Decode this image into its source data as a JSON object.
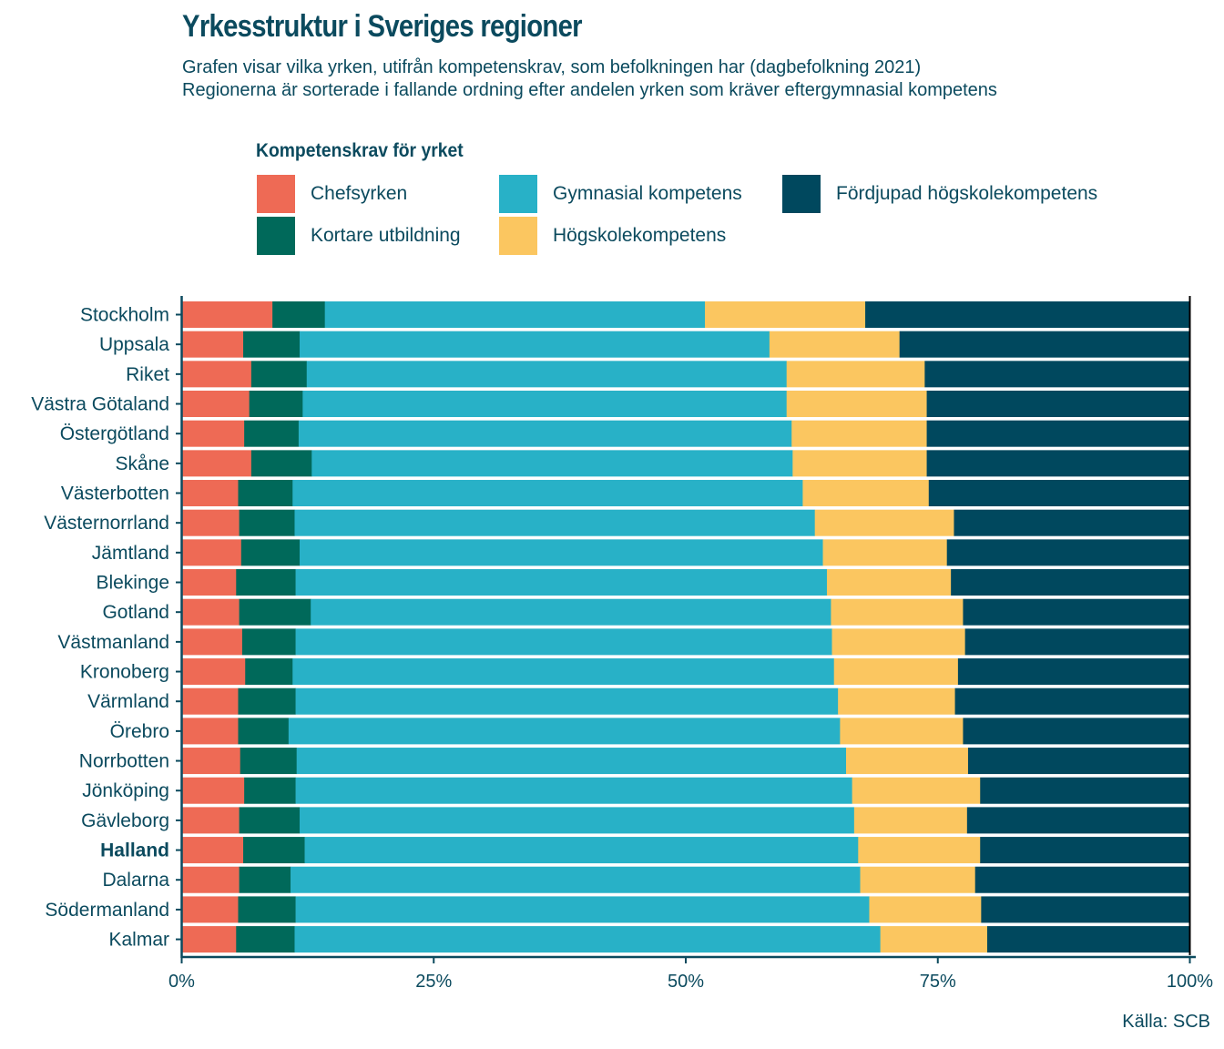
{
  "title": "Yrkesstruktur i Sveriges regioner",
  "subtitle_lines": [
    "Grafen visar vilka yrken, utifrån kompetenskrav, som befolkningen har (dagbefolkning 2021)",
    "Regionerna är sorterade i fallande ordning efter andelen yrken som kräver eftergymnasial kompetens"
  ],
  "legend": {
    "title": "Kompetenskrav för yrket",
    "items": [
      {
        "label": "Chefsyrken",
        "color": "#EE6A55"
      },
      {
        "label": "Kortare utbildning",
        "color": "#00695A"
      },
      {
        "label": "Gymnasial kompetens",
        "color": "#28B1C7"
      },
      {
        "label": "Högskolekompetens",
        "color": "#FBC660"
      },
      {
        "label": "Fördjupad högskolekompetens",
        "color": "#00485E"
      }
    ]
  },
  "source": "Källa: SCB",
  "chart_data": {
    "type": "bar",
    "orientation": "horizontal",
    "stacked": true,
    "normalized": true,
    "title": "Yrkesstruktur i Sveriges regioner",
    "xlabel": "",
    "ylabel": "",
    "xlim": [
      0,
      100
    ],
    "x_ticks": [
      "0%",
      "25%",
      "50%",
      "75%",
      "100%"
    ],
    "x_tick_values": [
      0,
      25,
      50,
      75,
      100
    ],
    "legend_position": "top",
    "highlighted_category": "Halland",
    "categories": [
      "Stockholm",
      "Uppsala",
      "Riket",
      "Västra Götaland",
      "Östergötland",
      "Skåne",
      "Västerbotten",
      "Västernorrland",
      "Jämtland",
      "Blekinge",
      "Gotland",
      "Västmanland",
      "Kronoberg",
      "Värmland",
      "Örebro",
      "Norrbotten",
      "Jönköping",
      "Gävleborg",
      "Halland",
      "Dalarna",
      "Södermanland",
      "Kalmar"
    ],
    "series": [
      {
        "name": "Chefsyrken",
        "color": "#EE6A55",
        "values": [
          9.0,
          6.1,
          6.9,
          6.7,
          6.2,
          6.9,
          5.6,
          5.7,
          5.9,
          5.4,
          5.7,
          6.0,
          6.3,
          5.6,
          5.6,
          5.8,
          6.2,
          5.7,
          6.1,
          5.7,
          5.6,
          5.4
        ]
      },
      {
        "name": "Kortare utbildning",
        "color": "#00695A",
        "values": [
          5.2,
          5.6,
          5.5,
          5.3,
          5.4,
          6.0,
          5.4,
          5.5,
          5.8,
          5.9,
          7.1,
          5.3,
          4.7,
          5.7,
          5.0,
          5.6,
          5.1,
          6.0,
          6.1,
          5.1,
          5.7,
          5.8
        ]
      },
      {
        "name": "Gymnasial kompetens",
        "color": "#28B1C7",
        "values": [
          37.7,
          46.6,
          47.6,
          48.0,
          48.9,
          47.7,
          50.6,
          51.6,
          51.9,
          52.7,
          51.6,
          53.2,
          53.7,
          53.8,
          54.7,
          54.5,
          55.2,
          55.0,
          54.9,
          56.5,
          56.9,
          58.1
        ]
      },
      {
        "name": "Högskolekompetens",
        "color": "#FBC660",
        "values": [
          15.9,
          12.9,
          13.7,
          13.9,
          13.4,
          13.3,
          12.5,
          13.8,
          12.3,
          12.3,
          13.1,
          13.2,
          12.3,
          11.6,
          12.2,
          12.1,
          12.7,
          11.2,
          12.1,
          11.4,
          11.1,
          10.6
        ]
      },
      {
        "name": "Fördjupad högskolekompetens",
        "color": "#00485E",
        "values": [
          32.2,
          28.8,
          26.3,
          26.1,
          26.1,
          26.1,
          25.9,
          23.4,
          24.1,
          23.7,
          22.5,
          22.3,
          23.0,
          23.3,
          22.5,
          22.0,
          20.8,
          22.1,
          20.8,
          21.3,
          20.7,
          20.1
        ]
      }
    ]
  }
}
